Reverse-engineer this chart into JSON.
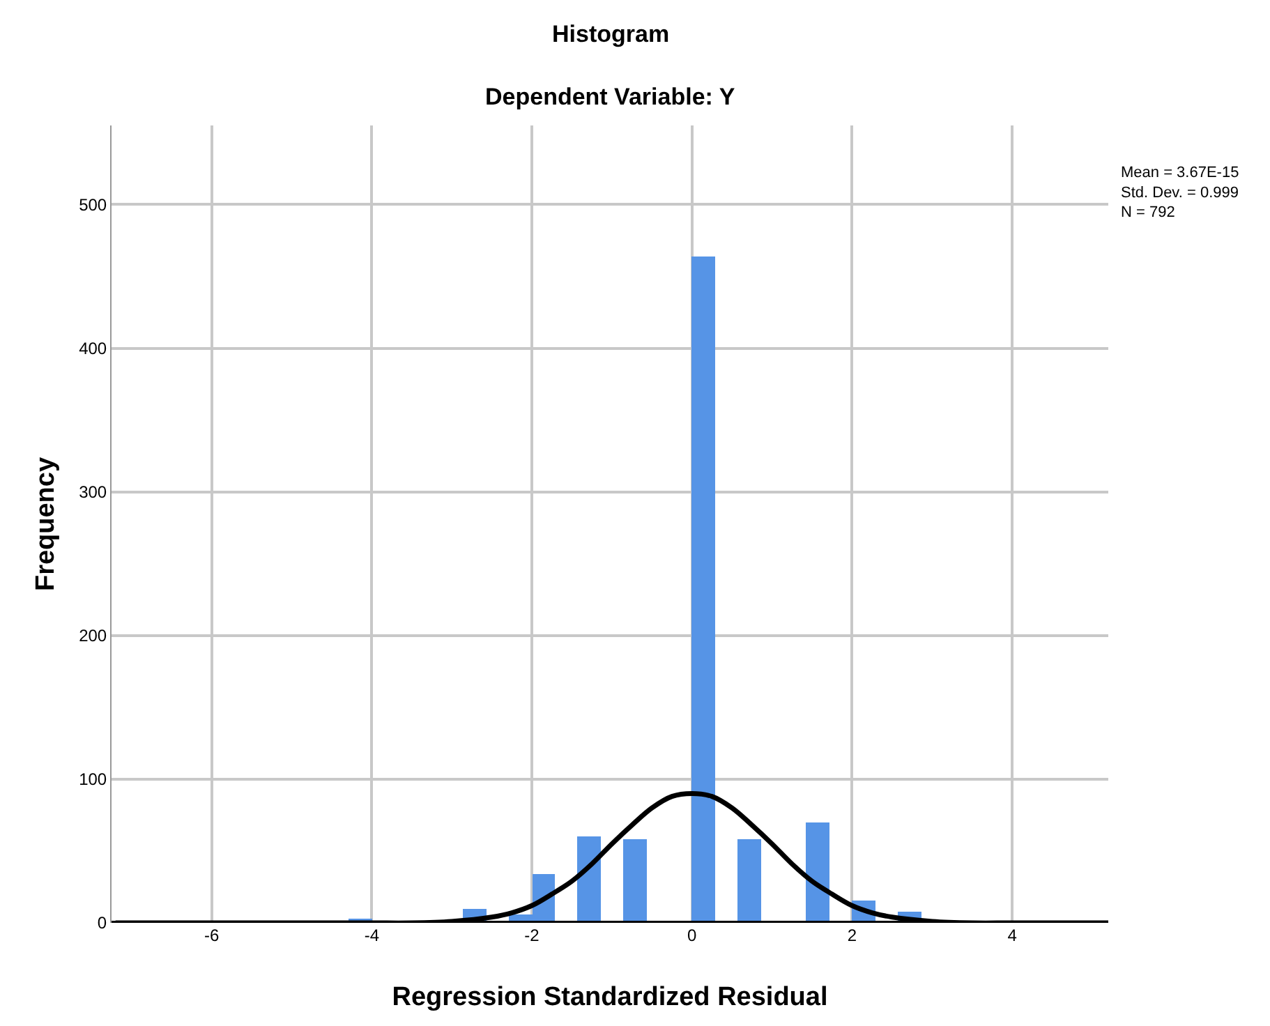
{
  "chart_data": {
    "type": "histogram",
    "title": "Histogram",
    "subtitle": "Dependent Variable: Y",
    "xlabel": "Regression Standardized Residual",
    "ylabel": "Frequency",
    "bins": [
      -4.29,
      -4.0,
      -2.86,
      -2.57,
      -2.29,
      -2.0,
      -1.71,
      -1.43,
      -1.14,
      -0.86,
      -0.57,
      0,
      0.29,
      0.57,
      0.86,
      1.43,
      1.71,
      2.0,
      2.29,
      2.57,
      2.86
    ],
    "values": [
      3,
      0,
      10,
      0,
      6,
      34,
      0,
      60,
      0,
      58,
      0,
      464,
      0,
      58,
      0,
      70,
      0,
      16,
      0,
      8
    ],
    "color": "#5694e6",
    "series": [
      {
        "type": "line",
        "color": "#000000",
        "x": [
          -7.2,
          -5,
          -4,
          -3.5,
          -3,
          -2.5,
          -2.25,
          -2,
          -1.75,
          -1.5,
          -1.25,
          -1,
          -0.75,
          -0.5,
          -0.25,
          0,
          0.25,
          0.5,
          0.75,
          1,
          1.25,
          1.5,
          1.75,
          2,
          2.25,
          2.5,
          3,
          3.5,
          4,
          5,
          5.2
        ],
        "values": [
          0,
          0,
          0,
          0,
          1,
          4,
          7,
          12,
          20,
          29,
          41,
          55,
          68,
          80,
          88,
          90,
          88,
          80,
          68,
          55,
          41,
          29,
          20,
          12,
          7,
          4,
          1,
          0,
          0,
          0,
          0
        ]
      }
    ],
    "annotations": [
      "Mean = 3.67E-15\nStd. Dev. = 0.999\nN = 792"
    ],
    "xlim": [
      -7.25,
      5.2
    ],
    "ylim": [
      0,
      555
    ],
    "xticks": [
      -6,
      -4,
      -2,
      0,
      2,
      4
    ],
    "yticks": [
      0,
      100,
      200,
      300,
      400,
      500
    ],
    "grid": true
  }
}
